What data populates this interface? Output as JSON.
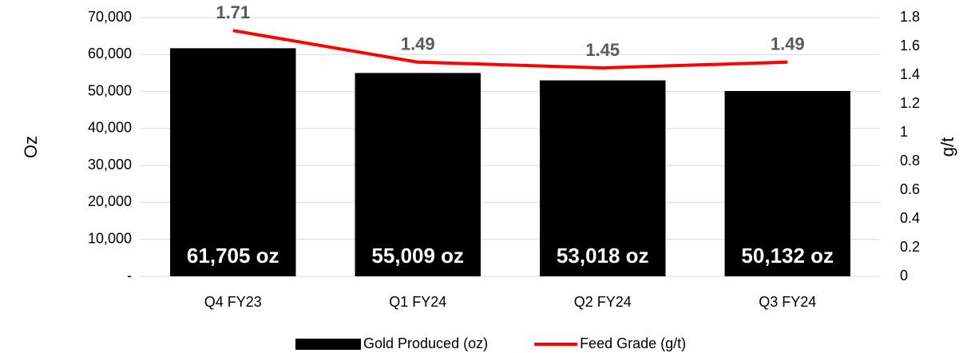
{
  "chart_data": {
    "type": "bar",
    "categories": [
      "Q4 FY23",
      "Q1 FY24",
      "Q2 FY24",
      "Q3 FY24"
    ],
    "series": [
      {
        "name": "Gold Produced (oz)",
        "type": "bar",
        "color": "#000000",
        "values": [
          61705,
          55009,
          53018,
          50132
        ],
        "value_labels": [
          "61,705 oz",
          "55,009 oz",
          "53,018 oz",
          "50,132 oz"
        ]
      },
      {
        "name": "Feed Grade (g/t)",
        "type": "line",
        "color": "#ff0000",
        "axis": "y2",
        "values": [
          1.71,
          1.49,
          1.45,
          1.49
        ]
      }
    ],
    "ylabel": "Oz",
    "y2label": "g/t",
    "ylim": [
      0,
      70000
    ],
    "yticks": [
      {
        "value": 0,
        "label": "-"
      },
      {
        "value": 10000,
        "label": "10,000"
      },
      {
        "value": 20000,
        "label": "20,000"
      },
      {
        "value": 30000,
        "label": "30,000"
      },
      {
        "value": 40000,
        "label": "40,000"
      },
      {
        "value": 50000,
        "label": "50,000"
      },
      {
        "value": 60000,
        "label": "60,000"
      },
      {
        "value": 70000,
        "label": "70,000"
      }
    ],
    "y2lim": [
      0,
      1.8
    ],
    "y2ticks": [
      0,
      0.2,
      0.4,
      0.6,
      0.8,
      1,
      1.2,
      1.4,
      1.6,
      1.8
    ],
    "grid": true,
    "legend": "bottom"
  }
}
